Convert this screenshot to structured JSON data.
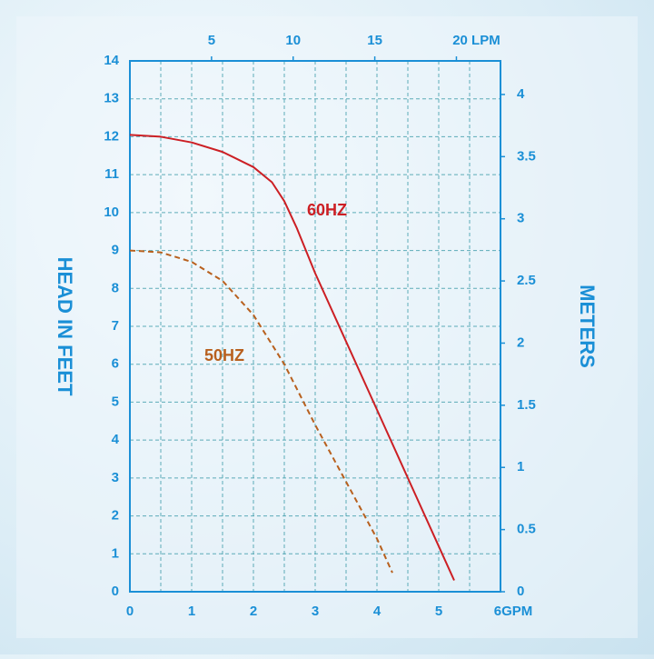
{
  "chart_data": {
    "type": "line",
    "y_label": "HEAD IN FEET",
    "y2_label": "METERS",
    "xlim": [
      0,
      6
    ],
    "xticks": [
      0,
      1,
      2,
      3,
      4,
      5,
      {
        "value": 6,
        "label": "6GPM"
      }
    ],
    "x2lim": [
      0,
      22.7
    ],
    "x2ticks": [
      5,
      10,
      15,
      {
        "value": 20,
        "label": "20 LPM"
      }
    ],
    "ylim": [
      0,
      14
    ],
    "yticks": [
      0,
      1,
      2,
      3,
      4,
      5,
      6,
      7,
      8,
      9,
      10,
      11,
      12,
      13,
      14
    ],
    "y2lim": [
      0,
      4.27
    ],
    "y2ticks": [
      0,
      0.5,
      1,
      1.5,
      2,
      2.5,
      3,
      3.5,
      4
    ],
    "x_minor_grid": [
      0.5,
      1.5,
      2.5,
      3.5,
      4.5,
      5.5
    ],
    "grid": true,
    "series": [
      {
        "name": "60HZ",
        "color": "#cc1f24",
        "dashed": false,
        "x": [
          0,
          0.5,
          1,
          1.5,
          2,
          2.3,
          2.5,
          2.7,
          3,
          3.5,
          4,
          4.5,
          5,
          5.25
        ],
        "y": [
          12.05,
          12.0,
          11.85,
          11.6,
          11.2,
          10.8,
          10.3,
          9.6,
          8.4,
          6.6,
          4.8,
          3.0,
          1.2,
          0.3
        ]
      },
      {
        "name": "50HZ",
        "color": "#b8601e",
        "dashed": true,
        "x": [
          0,
          0.5,
          1,
          1.5,
          2,
          2.5,
          3,
          3.5,
          4,
          4.25
        ],
        "y": [
          9.0,
          8.95,
          8.7,
          8.2,
          7.3,
          6.0,
          4.4,
          2.9,
          1.4,
          0.5
        ]
      }
    ]
  }
}
